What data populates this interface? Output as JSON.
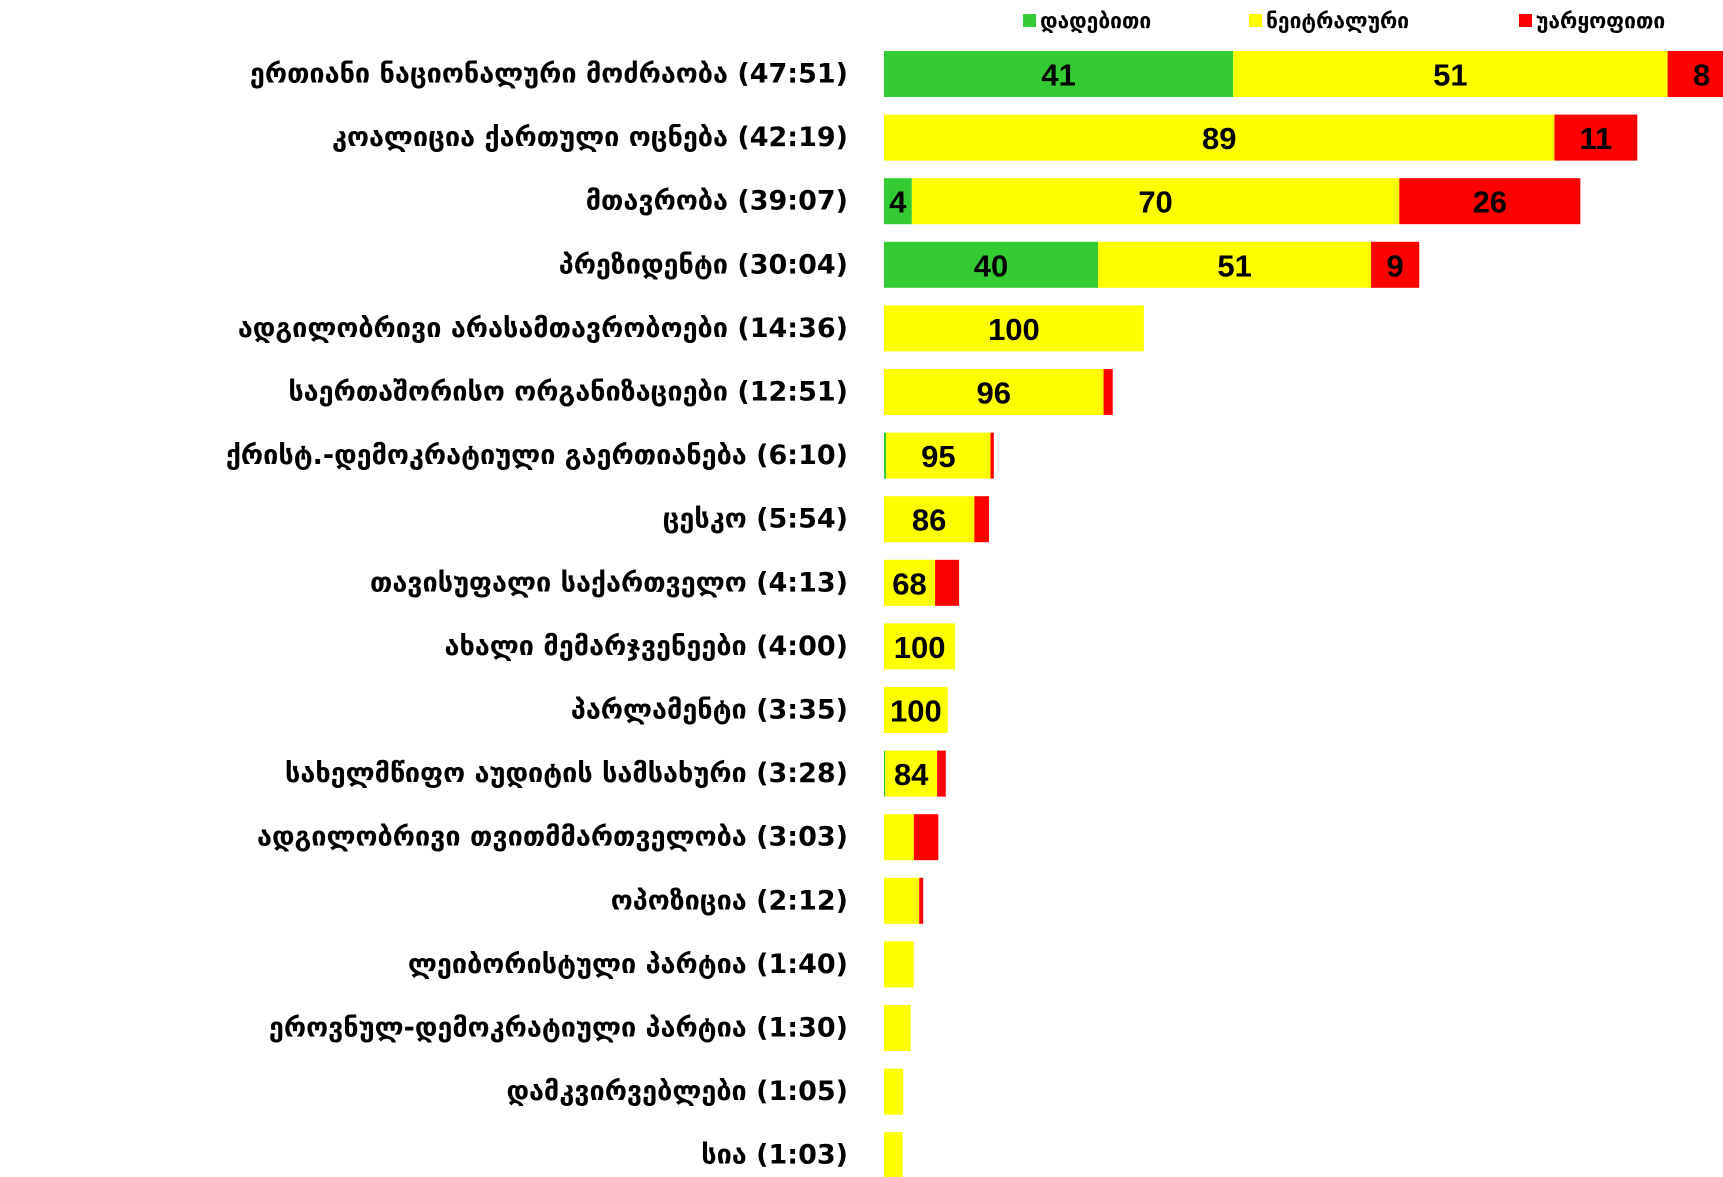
{
  "chart_data": {
    "type": "bar",
    "orientation": "horizontal",
    "stacked": true,
    "title": "",
    "xlabel": "",
    "ylabel": "",
    "grid": false,
    "legend_position": "top-right",
    "colors": {
      "positive": "#33CC33",
      "neutral": "#FFFF00",
      "negative": "#FF0000"
    },
    "categories": [
      "ერთიანი ნაციონალური მოძრაობა (47:51)",
      "კოალიცია ქართული ოცნება (42:19)",
      "მთავრობა (39:07)",
      "პრეზიდენტი (30:04)",
      "ადგილობრივი არასამთავრობოები (14:36)",
      "საერთაშორისო ორგანიზაციები (12:51)",
      "ქრისტ.-დემოკრატიული გაერთიანება (6:10)",
      "ცესკო (5:54)",
      "თავისუფალი საქართველო (4:13)",
      "ახალი მემარჯვენეები (4:00)",
      "პარლამენტი (3:35)",
      "სახელმწიფო აუდიტის სამსახური (3:28)",
      "ადგილობრივი თვითმმართველობა (3:03)",
      "ოპოზიცია (2:12)",
      "ლეიბორისტული პარტია (1:40)",
      "ეროვნულ-დემოკრატიული პარტია (1:30)",
      "დამკვირვებლები (1:05)",
      "სია (1:03)"
    ],
    "durations_minutes": [
      47.85,
      42.32,
      39.12,
      30.07,
      14.6,
      12.85,
      6.17,
      5.9,
      4.22,
      4.0,
      3.58,
      3.47,
      3.05,
      2.2,
      1.67,
      1.5,
      1.08,
      1.05
    ],
    "series": [
      {
        "name": "დადებითი",
        "values": [
          41,
          0,
          4,
          40,
          0,
          0,
          2,
          0,
          0,
          0,
          0,
          2,
          0,
          0,
          0,
          0,
          0,
          0
        ]
      },
      {
        "name": "ნეიტრალური",
        "values": [
          51,
          89,
          70,
          51,
          100,
          96,
          95,
          86,
          68,
          100,
          100,
          84,
          55,
          90,
          100,
          100,
          100,
          100
        ]
      },
      {
        "name": "უარყოფითი",
        "values": [
          8,
          11,
          26,
          9,
          0,
          4,
          3,
          14,
          32,
          0,
          0,
          14,
          45,
          10,
          0,
          0,
          0,
          0
        ]
      }
    ],
    "data_labels": [
      [
        "41",
        "51",
        "8"
      ],
      [
        "",
        "89",
        "11"
      ],
      [
        "4",
        "70",
        "26"
      ],
      [
        "40",
        "51",
        "9"
      ],
      [
        "",
        "100",
        ""
      ],
      [
        "",
        "96",
        ""
      ],
      [
        "",
        "95",
        ""
      ],
      [
        "",
        "86",
        ""
      ],
      [
        "",
        "68",
        ""
      ],
      [
        "",
        "100",
        ""
      ],
      [
        "",
        "100",
        ""
      ],
      [
        "",
        "84",
        ""
      ],
      [
        "",
        "",
        ""
      ],
      [
        "",
        "",
        ""
      ],
      [
        "",
        "",
        ""
      ],
      [
        "",
        "",
        ""
      ],
      [
        "",
        "",
        ""
      ],
      [
        "",
        "",
        ""
      ]
    ]
  }
}
